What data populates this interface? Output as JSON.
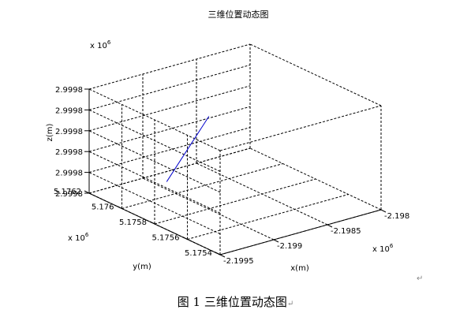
{
  "chart_data": {
    "type": "line3d",
    "title": "三维位置动态图",
    "xlabel": "x(m)",
    "ylabel": "y(m)",
    "zlabel": "z(m)",
    "x_multiplier": "x 10",
    "x_multiplier_exp": "6",
    "y_multiplier": "x 10",
    "y_multiplier_exp": "6",
    "z_multiplier": "x 10",
    "z_multiplier_exp": "6",
    "xlim": [
      -2.1995,
      -2.198
    ],
    "ylim": [
      5.1754,
      5.1762
    ],
    "zlim": [
      0,
      5
    ],
    "x_ticks": [
      {
        "v": -2.1995,
        "label": "-2.1995"
      },
      {
        "v": -2.199,
        "label": "-2.199"
      },
      {
        "v": -2.1985,
        "label": "-2.1985"
      },
      {
        "v": -2.198,
        "label": "-2.198"
      }
    ],
    "y_ticks": [
      {
        "v": 5.1754,
        "label": "5.1754"
      },
      {
        "v": 5.1756,
        "label": "5.1756"
      },
      {
        "v": 5.1758,
        "label": "5.1758"
      },
      {
        "v": 5.176,
        "label": "5.176"
      },
      {
        "v": 5.1762,
        "label": "5.1762"
      }
    ],
    "z_ticks": [
      {
        "v": 0,
        "label": "2.9998"
      },
      {
        "v": 1,
        "label": "2.9998"
      },
      {
        "v": 2,
        "label": "2.9998"
      },
      {
        "v": 3,
        "label": "2.9998"
      },
      {
        "v": 4,
        "label": "2.9998"
      },
      {
        "v": 5,
        "label": "2.9998"
      }
    ],
    "grid": true,
    "series": [
      {
        "color": "#0000cc",
        "points": [
          {
            "x": -2.19893,
            "y": 5.1761,
            "z": 0.1
          },
          {
            "x": -2.19875,
            "y": 5.17596,
            "z": 3.5
          }
        ]
      }
    ]
  },
  "caption": "图 1  三维位置动态图",
  "paragraph_mark": "↵"
}
